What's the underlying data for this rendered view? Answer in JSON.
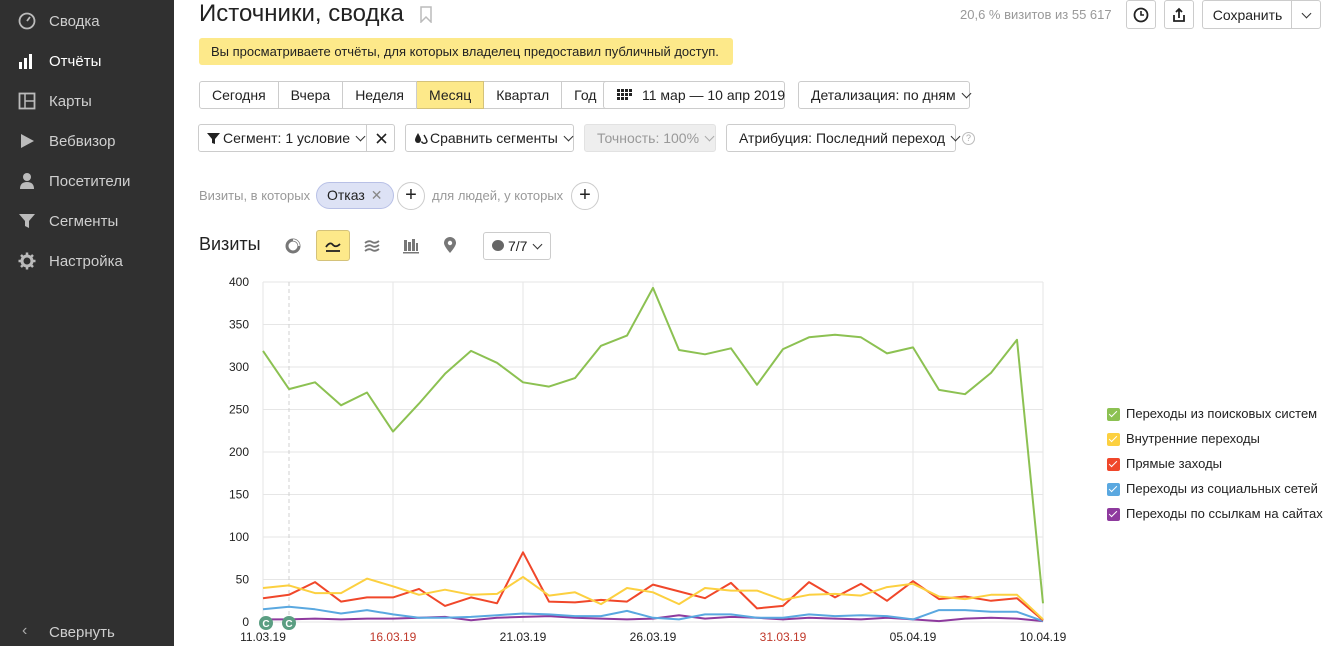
{
  "sidebar": {
    "items": [
      {
        "label": "Сводка",
        "icon": "gauge-icon",
        "active": false
      },
      {
        "label": "Отчёты",
        "icon": "bar-chart-icon",
        "active": true
      },
      {
        "label": "Карты",
        "icon": "map-icon",
        "active": false
      },
      {
        "label": "Вебвизор",
        "icon": "play-icon",
        "active": false
      },
      {
        "label": "Посетители",
        "icon": "person-icon",
        "active": false
      },
      {
        "label": "Сегменты",
        "icon": "funnel-icon",
        "active": false
      },
      {
        "label": "Настройка",
        "icon": "gear-icon",
        "active": false
      }
    ],
    "collapse_label": "Свернуть"
  },
  "header": {
    "title": "Источники, сводка",
    "visits_info": "20,6 % визитов из 55 617",
    "save_label": "Сохранить"
  },
  "notice": "Вы просматриваете отчёты, для которых владелец предоставил публичный доступ.",
  "period": {
    "buttons": [
      "Сегодня",
      "Вчера",
      "Неделя",
      "Месяц",
      "Квартал",
      "Год"
    ],
    "selected": "Месяц",
    "date_range": "11 мар — 10 апр 2019",
    "detail": "Детализация: по дням"
  },
  "filters": {
    "segment": "Сегмент: 1 условие",
    "compare": "Сравнить сегменты",
    "accuracy": "Точность: 100%",
    "attribution": "Атрибуция: Последний переход",
    "help": "?"
  },
  "segment_condition": {
    "prefix": "Визиты, в которых",
    "chip": "Отказ",
    "middle": "для людей, у которых"
  },
  "chart_toolbar": {
    "title": "Визиты",
    "annotations": "7/7"
  },
  "colors": {
    "search": "#8cc152",
    "internal": "#fcd040",
    "direct": "#f0472a",
    "social": "#5aa8e0",
    "links": "#8e3a9e",
    "weekend_tick": "#c0392b",
    "marker": "#5b9e82"
  },
  "chart_data": {
    "type": "line",
    "title": "",
    "xlabel": "",
    "ylabel": "",
    "ylim": [
      0,
      400
    ],
    "yticks": [
      0,
      50,
      100,
      150,
      200,
      250,
      300,
      350,
      400
    ],
    "x": [
      "11.03.19",
      "12.03.19",
      "13.03.19",
      "14.03.19",
      "15.03.19",
      "16.03.19",
      "17.03.19",
      "18.03.19",
      "19.03.19",
      "20.03.19",
      "21.03.19",
      "22.03.19",
      "23.03.19",
      "24.03.19",
      "25.03.19",
      "26.03.19",
      "27.03.19",
      "28.03.19",
      "29.03.19",
      "30.03.19",
      "31.03.19",
      "01.04.19",
      "02.04.19",
      "03.04.19",
      "04.04.19",
      "05.04.19",
      "06.04.19",
      "07.04.19",
      "08.04.19",
      "09.04.19",
      "10.04.19"
    ],
    "xtick_labels": [
      {
        "label": "11.03.19",
        "weekend": false
      },
      {
        "label": "16.03.19",
        "weekend": true
      },
      {
        "label": "21.03.19",
        "weekend": false
      },
      {
        "label": "26.03.19",
        "weekend": false
      },
      {
        "label": "31.03.19",
        "weekend": true
      },
      {
        "label": "05.04.19",
        "weekend": false
      },
      {
        "label": "10.04.19",
        "weekend": false
      }
    ],
    "marker_label": "C",
    "legend_position": "right",
    "series": [
      {
        "name": "Переходы из поисковых систем",
        "color": "#8cc152",
        "values": [
          319,
          274,
          282,
          255,
          270,
          224,
          257,
          292,
          319,
          305,
          282,
          277,
          287,
          325,
          337,
          393,
          320,
          315,
          322,
          279,
          321,
          335,
          338,
          335,
          316,
          323,
          273,
          268,
          293,
          332,
          22
        ]
      },
      {
        "name": "Внутренние переходы",
        "color": "#fcd040",
        "values": [
          40,
          43,
          34,
          34,
          51,
          42,
          32,
          38,
          32,
          33,
          53,
          31,
          35,
          21,
          40,
          35,
          21,
          40,
          37,
          37,
          26,
          32,
          33,
          31,
          41,
          45,
          30,
          27,
          32,
          32,
          3
        ]
      },
      {
        "name": "Прямые заходы",
        "color": "#f0472a",
        "values": [
          28,
          32,
          47,
          24,
          29,
          29,
          39,
          19,
          29,
          22,
          82,
          24,
          23,
          26,
          24,
          44,
          36,
          28,
          46,
          16,
          19,
          47,
          29,
          45,
          25,
          48,
          27,
          30,
          25,
          28,
          2
        ]
      },
      {
        "name": "Переходы из социальных сетей",
        "color": "#5aa8e0",
        "values": [
          15,
          18,
          15,
          10,
          14,
          9,
          5,
          5,
          6,
          8,
          10,
          9,
          7,
          7,
          13,
          5,
          3,
          9,
          9,
          5,
          5,
          9,
          7,
          8,
          7,
          3,
          14,
          14,
          12,
          12,
          1
        ]
      },
      {
        "name": "Переходы по ссылкам на сайтах",
        "color": "#8e3a9e",
        "values": [
          3,
          3,
          4,
          3,
          4,
          4,
          5,
          6,
          2,
          5,
          6,
          7,
          5,
          4,
          3,
          4,
          8,
          4,
          6,
          5,
          3,
          5,
          4,
          3,
          5,
          3,
          1,
          4,
          5,
          4,
          1
        ]
      }
    ]
  }
}
